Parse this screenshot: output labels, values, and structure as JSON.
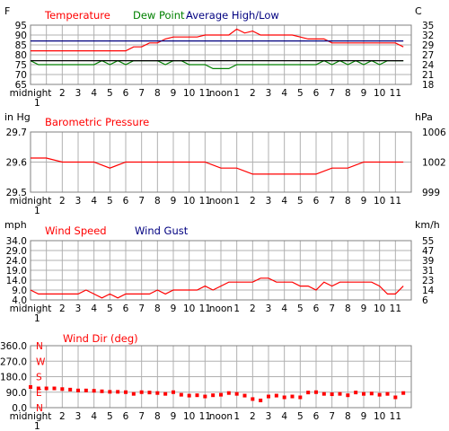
{
  "time_ticks": [
    "midnight",
    "2",
    "3",
    "4",
    "5",
    "6",
    "7",
    "8",
    "9",
    "10",
    "11",
    "noon",
    "1",
    "2",
    "3",
    "4",
    "5",
    "6",
    "7",
    "8",
    "9",
    "10",
    "11"
  ],
  "time_ticks_sub": "1",
  "colors": {
    "red": "#ff0000",
    "green": "#008000",
    "navy": "#000080",
    "grid": "#a8a8a8",
    "gridDark": "#000000"
  },
  "chart_data": [
    {
      "type": "line",
      "left_unit": "F",
      "right_unit": "C",
      "ylim": [
        65,
        95
      ],
      "left_ticks": [
        "95",
        "90",
        "85",
        "80",
        "75",
        "70",
        "65"
      ],
      "right_ticks": [
        "35",
        "32",
        "29",
        "27",
        "24",
        "21",
        "18"
      ],
      "legend": [
        {
          "label": "Temperature",
          "color": "#ff0000"
        },
        {
          "label": "Dew Point",
          "color": "#008000"
        },
        {
          "label": "Average High/Low",
          "color": "#000080"
        }
      ],
      "series": [
        {
          "name": "Temperature",
          "color": "#ff0000",
          "x": [
            0,
            0.5,
            1,
            1.5,
            2,
            2.5,
            3,
            3.5,
            4,
            4.5,
            5,
            5.5,
            6,
            6.5,
            7,
            7.5,
            8,
            8.5,
            9,
            9.5,
            10,
            10.5,
            11,
            11.5,
            12,
            12.5,
            13,
            13.5,
            14,
            14.5,
            15,
            15.5,
            16,
            16.5,
            17,
            17.5,
            18,
            18.5,
            19,
            19.5,
            20,
            20.5,
            21,
            21.5,
            22,
            22.5,
            23,
            23.5
          ],
          "y": [
            82,
            82,
            82,
            82,
            82,
            82,
            82,
            82,
            82,
            82,
            82,
            82,
            82,
            84,
            84,
            86,
            86,
            88,
            89,
            89,
            89,
            89,
            90,
            90,
            90,
            90,
            93,
            91,
            92,
            90,
            90,
            90,
            90,
            90,
            89,
            88,
            88,
            88,
            86,
            86,
            86,
            86,
            86,
            86,
            86,
            86,
            86,
            84
          ]
        },
        {
          "name": "Dew Point",
          "color": "#008000",
          "x": [
            0,
            0.5,
            1,
            1.5,
            2,
            2.5,
            3,
            3.5,
            4,
            4.5,
            5,
            5.5,
            6,
            6.5,
            7,
            7.5,
            8,
            8.5,
            9,
            9.5,
            10,
            10.5,
            11,
            11.5,
            12,
            12.5,
            13,
            13.5,
            14,
            14.5,
            15,
            15.5,
            16,
            16.5,
            17,
            17.5,
            18,
            18.5,
            19,
            19.5,
            20,
            20.5,
            21,
            21.5,
            22,
            22.5,
            23,
            23.5
          ],
          "y": [
            77,
            75,
            75,
            75,
            75,
            75,
            75,
            75,
            75,
            77,
            75,
            77,
            75,
            77,
            77,
            77,
            77,
            75,
            77,
            77,
            75,
            75,
            75,
            73,
            73,
            73,
            75,
            75,
            75,
            75,
            75,
            75,
            75,
            75,
            75,
            75,
            75,
            77,
            75,
            77,
            75,
            77,
            75,
            77,
            75,
            77,
            77,
            77
          ]
        },
        {
          "name": "Average High",
          "color": "#000080",
          "x": [
            0,
            23.5
          ],
          "y": [
            87,
            87
          ]
        },
        {
          "name": "Average Low",
          "color": "#000000",
          "x": [
            0,
            23.5
          ],
          "y": [
            77,
            77
          ]
        }
      ]
    },
    {
      "type": "line",
      "left_unit": "in Hg",
      "right_unit": "hPa",
      "ylim": [
        29.5,
        29.8
      ],
      "left_ticks": [
        "29.7",
        "29.6",
        "29.5"
      ],
      "right_ticks": [
        "1006",
        "1002",
        "999"
      ],
      "legend": [
        {
          "label": "Barometric Pressure",
          "color": "#ff0000"
        }
      ],
      "series": [
        {
          "name": "Barometric Pressure",
          "color": "#ff0000",
          "x": [
            0,
            1,
            2,
            3,
            4,
            5,
            6,
            7,
            8,
            9,
            10,
            11,
            12,
            13,
            14,
            15,
            16,
            17,
            18,
            19,
            20,
            21,
            22,
            23.5
          ],
          "y": [
            29.67,
            29.67,
            29.65,
            29.65,
            29.65,
            29.62,
            29.65,
            29.65,
            29.65,
            29.65,
            29.65,
            29.65,
            29.62,
            29.62,
            29.59,
            29.59,
            29.59,
            29.59,
            29.59,
            29.62,
            29.62,
            29.65,
            29.65,
            29.65
          ]
        }
      ]
    },
    {
      "type": "line",
      "left_unit": "mph",
      "right_unit": "km/h",
      "ylim": [
        4.0,
        34.0
      ],
      "left_ticks": [
        "34.0",
        "29.0",
        "24.0",
        "19.0",
        "14.0",
        "9.0",
        "4.0"
      ],
      "right_ticks": [
        "55",
        "47",
        "39",
        "31",
        "23",
        "14",
        "6"
      ],
      "legend": [
        {
          "label": "Wind Speed",
          "color": "#ff0000"
        },
        {
          "label": "Wind Gust",
          "color": "#000080"
        }
      ],
      "series": [
        {
          "name": "Wind Speed",
          "color": "#ff0000",
          "x": [
            0,
            0.5,
            1,
            1.5,
            2,
            2.5,
            3,
            3.5,
            4,
            4.5,
            5,
            5.5,
            6,
            6.5,
            7,
            7.5,
            8,
            8.5,
            9,
            9.5,
            10,
            10.5,
            11,
            11.5,
            12,
            12.5,
            13,
            13.5,
            14,
            14.5,
            15,
            15.5,
            16,
            16.5,
            17,
            17.5,
            18,
            18.5,
            19,
            19.5,
            20,
            20.5,
            21,
            21.5,
            22,
            22.5,
            23,
            23.5
          ],
          "y": [
            9,
            7,
            7,
            7,
            7,
            7,
            7,
            9,
            7,
            5,
            7,
            5,
            7,
            7,
            7,
            7,
            9,
            7,
            9,
            9,
            9,
            9,
            11,
            9,
            11,
            13,
            13,
            13,
            13,
            15,
            15,
            13,
            13,
            13,
            11,
            11,
            9,
            13,
            11,
            13,
            13,
            13,
            13,
            13,
            11,
            7,
            7,
            11
          ]
        }
      ]
    },
    {
      "type": "scatter",
      "left_unit": "",
      "right_unit": "",
      "ylim": [
        0,
        360
      ],
      "left_ticks": [
        "360.0",
        "270.0",
        "180.0",
        "90.0",
        "0.0"
      ],
      "compass_labels": [
        "N",
        "W",
        "S",
        "E",
        "N"
      ],
      "legend": [
        {
          "label": "Wind Dir (deg)",
          "color": "#ff0000"
        }
      ],
      "series": [
        {
          "name": "Wind Dir (deg)",
          "color": "#ff0000",
          "x": [
            0,
            0.5,
            1,
            1.5,
            2,
            2.5,
            3,
            3.5,
            4,
            4.5,
            5,
            5.5,
            6,
            6.5,
            7,
            7.5,
            8,
            8.5,
            9,
            9.5,
            10,
            10.5,
            11,
            11.5,
            12,
            12.5,
            13,
            13.5,
            14,
            14.5,
            15,
            15.5,
            16,
            16.5,
            17,
            17.5,
            18,
            18.5,
            19,
            19.5,
            20,
            20.5,
            21,
            21.5,
            22,
            22.5,
            23,
            23.5
          ],
          "y": [
            120,
            112,
            112,
            112,
            108,
            105,
            100,
            100,
            98,
            95,
            92,
            92,
            90,
            80,
            90,
            88,
            85,
            80,
            90,
            75,
            70,
            72,
            65,
            72,
            75,
            85,
            80,
            70,
            50,
            42,
            65,
            70,
            60,
            65,
            60,
            88,
            90,
            80,
            78,
            80,
            72,
            88,
            80,
            82,
            75,
            80,
            60,
            85
          ]
        }
      ]
    }
  ]
}
